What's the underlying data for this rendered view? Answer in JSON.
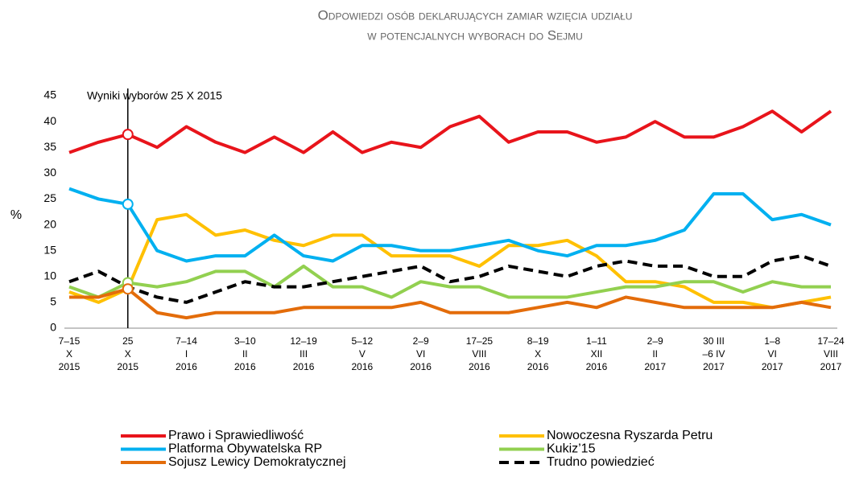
{
  "chart_data": {
    "type": "line",
    "title": [
      "Odpowiedzi osób deklarujących zamiar wzięcia udziału",
      "w potencjalnych wyborach do Sejmu"
    ],
    "y_label": "%",
    "annotation": "Wyniki wyborów 25 X 2015",
    "categories": [
      [
        "7–15",
        "X",
        "2015"
      ],
      null,
      [
        "25",
        "X",
        "2015"
      ],
      null,
      [
        "7–14",
        "I",
        "2016"
      ],
      null,
      [
        "3–10",
        "II",
        "2016"
      ],
      null,
      [
        "12–19",
        "III",
        "2016"
      ],
      null,
      [
        "5–12",
        "V",
        "2016"
      ],
      null,
      [
        "2–9",
        "VI",
        "2016"
      ],
      null,
      [
        "17–25",
        "VIII",
        "2016"
      ],
      null,
      [
        "8–19",
        "X",
        "2016"
      ],
      null,
      [
        "1–11",
        "XII",
        "2016"
      ],
      null,
      [
        "2–9",
        "II",
        "2017"
      ],
      null,
      [
        "30 III",
        "–6 IV",
        "2017"
      ],
      null,
      [
        "1–8",
        "VI",
        "2017"
      ],
      null,
      [
        "17–24",
        "VIII",
        "2017"
      ]
    ],
    "series": [
      {
        "name": "Prawo i Sprawiedliwość",
        "color": "#e8141b",
        "marker": true,
        "values": [
          34,
          36,
          37.5,
          35,
          39,
          36,
          34,
          37,
          34,
          38,
          34,
          36,
          35,
          39,
          41,
          36,
          38,
          38,
          36,
          37,
          40,
          37,
          37,
          39,
          42,
          38,
          42
        ]
      },
      {
        "name": "Nowoczesna Ryszarda Petru",
        "color": "#ffc000",
        "marker": true,
        "values": [
          7,
          5,
          7.6,
          21,
          22,
          18,
          19,
          17,
          16,
          18,
          18,
          14,
          14,
          14,
          12,
          16,
          16,
          17,
          14,
          9,
          9,
          8,
          5,
          5,
          4,
          5,
          6
        ]
      },
      {
        "name": "Platforma Obywatelska RP",
        "color": "#00b0f0",
        "marker": true,
        "values": [
          27,
          25,
          24,
          15,
          13,
          14,
          14,
          18,
          14,
          13,
          16,
          16,
          15,
          15,
          16,
          17,
          15,
          14,
          16,
          16,
          17,
          19,
          26,
          26,
          21,
          22,
          20
        ]
      },
      {
        "name": "Kukiz’15",
        "color": "#92d050",
        "marker": true,
        "values": [
          8,
          6,
          8.8,
          8,
          9,
          11,
          11,
          8,
          12,
          8,
          8,
          6,
          9,
          8,
          8,
          6,
          6,
          6,
          7,
          8,
          8,
          9,
          9,
          7,
          9,
          8,
          8
        ]
      },
      {
        "name": "Sojusz Lewicy Demokratycznej",
        "color": "#e36c0a",
        "marker": true,
        "values": [
          6,
          6,
          7.6,
          3,
          2,
          3,
          3,
          3,
          4,
          4,
          4,
          4,
          5,
          3,
          3,
          3,
          4,
          5,
          4,
          6,
          5,
          4,
          4,
          4,
          4,
          5,
          4
        ]
      },
      {
        "name": "Trudno powiedzieć",
        "color": "#000000",
        "dashed": true,
        "values": [
          9,
          11,
          8,
          6,
          5,
          7,
          9,
          8,
          8,
          9,
          10,
          11,
          12,
          9,
          10,
          12,
          11,
          10,
          12,
          13,
          12,
          12,
          10,
          10,
          13,
          14,
          12
        ]
      }
    ],
    "ylim": [
      0,
      45
    ],
    "yticks": [
      0,
      5,
      10,
      15,
      20,
      25,
      30,
      35,
      40,
      45
    ]
  }
}
